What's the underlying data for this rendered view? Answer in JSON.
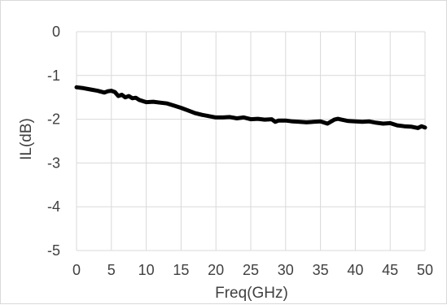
{
  "chart_data": {
    "type": "line",
    "title": "",
    "xlabel": "Freq(GHz)",
    "ylabel": "IL(dB)",
    "xlim": [
      0,
      50
    ],
    "ylim": [
      -5,
      0
    ],
    "xticks": [
      0,
      5,
      10,
      15,
      20,
      25,
      30,
      35,
      40,
      45,
      50
    ],
    "yticks": [
      0,
      -1,
      -2,
      -3,
      -4,
      -5
    ],
    "grid": "vertical and horizontal major gridlines",
    "legend": "none",
    "series": [
      {
        "color": "#000000",
        "x": [
          0,
          1,
          2,
          3,
          4,
          4.5,
          5,
          5.5,
          6,
          6.5,
          7,
          7.5,
          8,
          8.5,
          9,
          10,
          11,
          12,
          13,
          14,
          15,
          16,
          17,
          18,
          19,
          20,
          21,
          22,
          23,
          24,
          25,
          26,
          27,
          28,
          28.5,
          29,
          30,
          31,
          32,
          33,
          34,
          35,
          36,
          37,
          37.5,
          38,
          39,
          40,
          41,
          42,
          43,
          44,
          45,
          46,
          47,
          48,
          49,
          49.5,
          50
        ],
        "y": [
          -1.27,
          -1.29,
          -1.32,
          -1.35,
          -1.39,
          -1.36,
          -1.35,
          -1.38,
          -1.47,
          -1.44,
          -1.5,
          -1.47,
          -1.52,
          -1.51,
          -1.56,
          -1.61,
          -1.6,
          -1.62,
          -1.64,
          -1.69,
          -1.74,
          -1.8,
          -1.86,
          -1.9,
          -1.93,
          -1.96,
          -1.96,
          -1.95,
          -1.98,
          -1.96,
          -2.0,
          -1.99,
          -2.01,
          -2.0,
          -2.06,
          -2.03,
          -2.03,
          -2.05,
          -2.06,
          -2.07,
          -2.06,
          -2.05,
          -2.1,
          -2.01,
          -1.99,
          -2.01,
          -2.04,
          -2.05,
          -2.06,
          -2.05,
          -2.08,
          -2.1,
          -2.09,
          -2.14,
          -2.16,
          -2.17,
          -2.2,
          -2.16,
          -2.19
        ]
      }
    ]
  }
}
